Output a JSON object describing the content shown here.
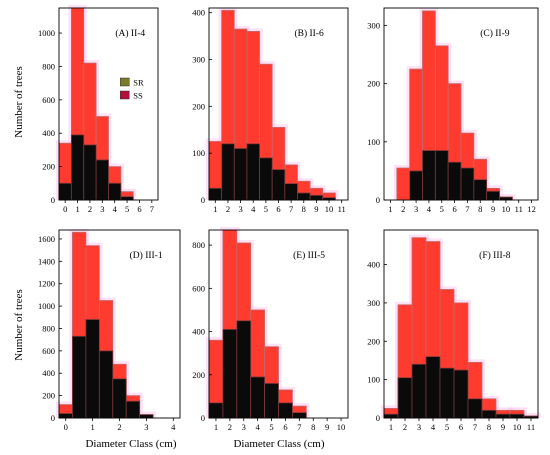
{
  "figure": {
    "ylabel": "Number of trees",
    "xlabel": "Diameter Class (cm)",
    "legend": [
      {
        "name": "SR",
        "color": "#7a7a2a"
      },
      {
        "name": "SS",
        "color": "#b0103a"
      }
    ],
    "colors": {
      "total": "#ff3b30",
      "ss": "#0a0a0a",
      "total_border": "#c46a6a",
      "ss_border": "#7a3a3a",
      "halo": "#ffc8f0"
    }
  },
  "chart_data": [
    {
      "type": "bar",
      "panel": "A",
      "title": "(A) II-4",
      "x_ticks": [
        "0",
        "1",
        "2",
        "3",
        "4",
        "5",
        "6",
        "7"
      ],
      "y_ticks": [
        "0",
        "200",
        "400",
        "600",
        "800",
        "1000"
      ],
      "xlim": [
        -0.5,
        7.5
      ],
      "ylim": [
        0,
        1150
      ],
      "series": [
        {
          "role": "total",
          "x": [
            0,
            1,
            2,
            3,
            4,
            5
          ],
          "values": [
            340,
            1150,
            820,
            500,
            200,
            50
          ]
        },
        {
          "role": "ss",
          "x": [
            0,
            1,
            2,
            3,
            4,
            5
          ],
          "values": [
            100,
            390,
            330,
            240,
            100,
            20
          ]
        }
      ],
      "has_legend": true
    },
    {
      "type": "bar",
      "panel": "B",
      "title": "(B) II-6",
      "x_ticks": [
        "1",
        "2",
        "3",
        "4",
        "5",
        "6",
        "7",
        "8",
        "9",
        "10",
        "11"
      ],
      "y_ticks": [
        "0",
        "100",
        "200",
        "300",
        "400"
      ],
      "xlim": [
        0.5,
        11.5
      ],
      "ylim": [
        0,
        410
      ],
      "series": [
        {
          "role": "total",
          "x": [
            1,
            2,
            3,
            4,
            5,
            6,
            7,
            8,
            9,
            10
          ],
          "values": [
            125,
            405,
            365,
            360,
            290,
            155,
            75,
            40,
            25,
            15
          ]
        },
        {
          "role": "ss",
          "x": [
            1,
            2,
            3,
            4,
            5,
            6,
            7,
            8,
            9,
            10
          ],
          "values": [
            25,
            120,
            110,
            120,
            90,
            65,
            35,
            15,
            10,
            5
          ]
        }
      ]
    },
    {
      "type": "bar",
      "panel": "C",
      "title": "(C) II-9",
      "x_ticks": [
        "1",
        "2",
        "3",
        "4",
        "5",
        "6",
        "7",
        "8",
        "9",
        "10",
        "11",
        "12"
      ],
      "y_ticks": [
        "0",
        "100",
        "200",
        "300"
      ],
      "xlim": [
        0.5,
        12.5
      ],
      "ylim": [
        0,
        330
      ],
      "series": [
        {
          "role": "total",
          "x": [
            2,
            3,
            4,
            5,
            6,
            7,
            8,
            9,
            10,
            11
          ],
          "values": [
            55,
            225,
            325,
            265,
            200,
            115,
            70,
            20,
            5,
            0
          ]
        },
        {
          "role": "ss",
          "x": [
            2,
            3,
            4,
            5,
            6,
            7,
            8,
            9,
            10,
            11
          ],
          "values": [
            0,
            50,
            85,
            85,
            65,
            55,
            35,
            15,
            5,
            0
          ]
        }
      ]
    },
    {
      "type": "bar",
      "panel": "D",
      "title": "(D) III-1",
      "x_ticks": [
        "0",
        "1",
        "2",
        "3",
        "4"
      ],
      "y_ticks": [
        "0",
        "200",
        "400",
        "600",
        "800",
        "1000",
        "1200",
        "1400",
        "1600"
      ],
      "xlim": [
        -0.25,
        4.25
      ],
      "ylim": [
        0,
        1680
      ],
      "series": [
        {
          "role": "total",
          "x": [
            0,
            0.5,
            1,
            1.5,
            2,
            2.5,
            3,
            3.5
          ],
          "values": [
            120,
            1660,
            1540,
            1050,
            480,
            200,
            30,
            0
          ]
        },
        {
          "role": "ss",
          "x": [
            0,
            0.5,
            1,
            1.5,
            2,
            2.5,
            3,
            3.5
          ],
          "values": [
            40,
            730,
            880,
            600,
            350,
            150,
            30,
            0
          ]
        }
      ]
    },
    {
      "type": "bar",
      "panel": "E",
      "title": "(E) III-5",
      "x_ticks": [
        "1",
        "2",
        "3",
        "4",
        "5",
        "6",
        "7",
        "8",
        "9",
        "10"
      ],
      "y_ticks": [
        "0",
        "200",
        "400",
        "600",
        "800"
      ],
      "xlim": [
        0.5,
        10.5
      ],
      "ylim": [
        0,
        870
      ],
      "series": [
        {
          "role": "total",
          "x": [
            1,
            2,
            3,
            4,
            5,
            6,
            7,
            8
          ],
          "values": [
            360,
            870,
            810,
            500,
            330,
            130,
            55,
            0
          ]
        },
        {
          "role": "ss",
          "x": [
            1,
            2,
            3,
            4,
            5,
            6,
            7,
            8
          ],
          "values": [
            70,
            410,
            450,
            190,
            160,
            70,
            25,
            0
          ]
        }
      ]
    },
    {
      "type": "bar",
      "panel": "F",
      "title": "(F) III-8",
      "x_ticks": [
        "1",
        "2",
        "3",
        "4",
        "5",
        "6",
        "7",
        "8",
        "9",
        "10",
        "11"
      ],
      "y_ticks": [
        "0",
        "100",
        "200",
        "300",
        "400"
      ],
      "xlim": [
        0.5,
        11.5
      ],
      "ylim": [
        0,
        490
      ],
      "series": [
        {
          "role": "total",
          "x": [
            1,
            2,
            3,
            4,
            5,
            6,
            7,
            8,
            9,
            10,
            11
          ],
          "values": [
            25,
            295,
            470,
            460,
            335,
            300,
            145,
            50,
            20,
            20,
            5
          ]
        },
        {
          "role": "ss",
          "x": [
            1,
            2,
            3,
            4,
            5,
            6,
            7,
            8,
            9,
            10,
            11
          ],
          "values": [
            10,
            105,
            140,
            160,
            130,
            125,
            50,
            20,
            10,
            10,
            5
          ]
        }
      ]
    }
  ]
}
